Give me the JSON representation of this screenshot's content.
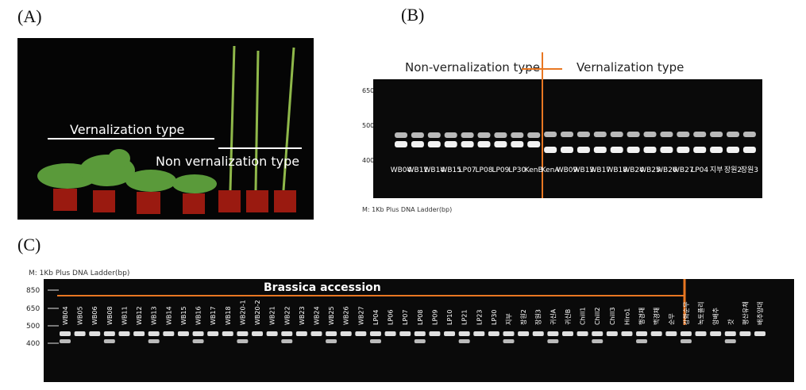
{
  "panel_a": {
    "label": "(A)",
    "vernalization": "Vernalization type",
    "non_vernalization": "Non vernalization type"
  },
  "panel_b": {
    "label": "(B)",
    "left_heading": "Non-vernalization type",
    "right_heading": "Vernalization type",
    "ladder": [
      "650",
      "500",
      "400"
    ],
    "lanes": [
      "WB04",
      "WB11",
      "WB14",
      "WB15",
      "LP07",
      "LP08",
      "LP09",
      "LP30",
      "KenB",
      "KenA",
      "WB09",
      "WB13",
      "WB17",
      "WB18",
      "WB24",
      "WB25",
      "WB26",
      "WB27",
      "LP04",
      "지부",
      "장원2",
      "장원3"
    ],
    "caption": "M: 1Kb Plus DNA Ladder(bp)"
  },
  "panel_c": {
    "label": "(C)",
    "caption": "M: 1Kb Plus DNA Ladder(bp)",
    "heading": "Brassica accession",
    "ladder": [
      "850",
      "650",
      "500",
      "400"
    ],
    "lanes": [
      "WB04",
      "WB05",
      "WB06",
      "WB08",
      "WB11",
      "WB12",
      "WB13",
      "WB14",
      "WB15",
      "WB16",
      "WB17",
      "WB18",
      "WB20-1",
      "WB20-2",
      "WB21",
      "WB22",
      "WB23",
      "WB24",
      "WB25",
      "WB26",
      "WB27",
      "LP04",
      "LP06",
      "LP07",
      "LP08",
      "LP09",
      "LP10",
      "LP21",
      "LP23",
      "LP30",
      "지부",
      "장원2",
      "장원3",
      "귀신A",
      "귀신B",
      "Chill1",
      "Chill2",
      "Chill3",
      "Hiro1",
      "행경채",
      "백경채",
      "순무",
      "강화순무",
      "녹토플리",
      "양배추",
      "갓",
      "평산유채",
      "배추양대"
    ]
  }
}
